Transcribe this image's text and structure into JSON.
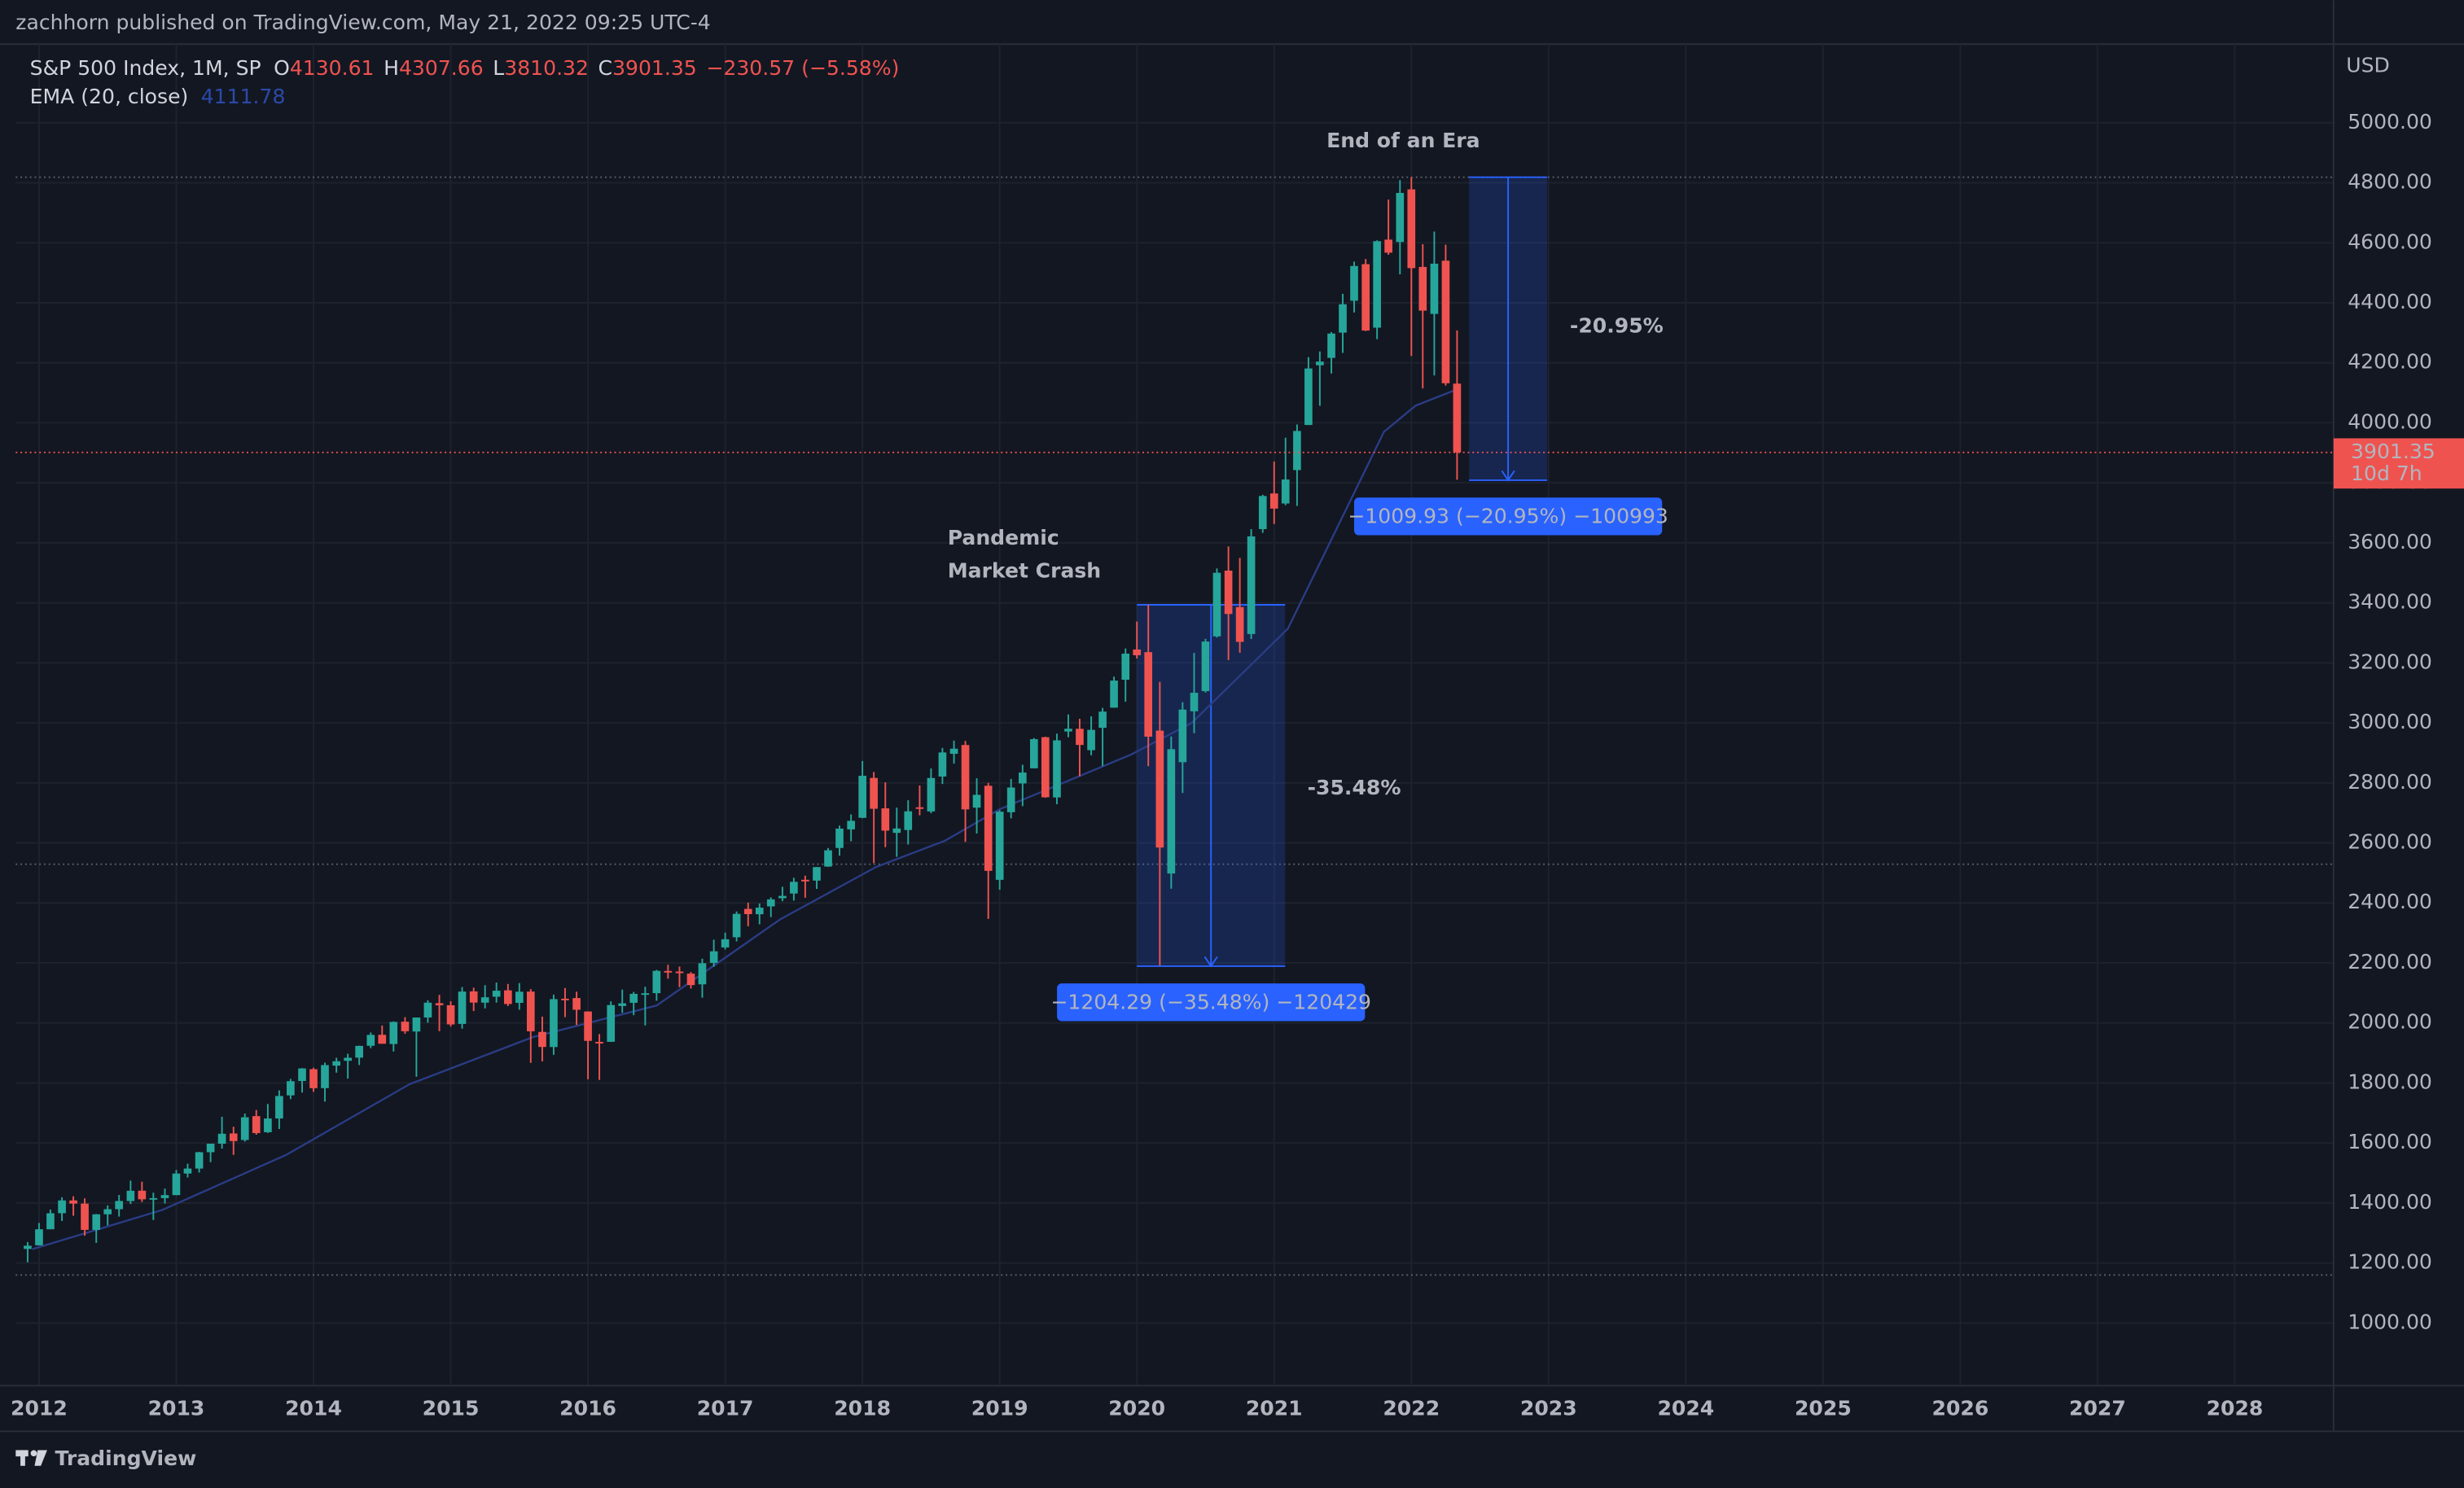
{
  "header": {
    "text": "zachhorn published on TradingView.com, May 21, 2022 09:25 UTC-4"
  },
  "legend": {
    "symbol": "S&P 500 Index, 1M, SP",
    "o": "O",
    "h": "H",
    "l": "L",
    "c": "C",
    "change": "−230.57 (−5.58%)",
    "ema_name": "EMA (20, close)"
  },
  "footer": {
    "brand": "TradingView"
  },
  "chart_data": {
    "type": "candlestick",
    "currency": "USD",
    "countdown": "10d 7h",
    "x": [
      2011.917,
      2012,
      2012.083,
      2012.167,
      2012.25,
      2012.333,
      2012.417,
      2012.5,
      2012.583,
      2012.667,
      2012.75,
      2012.833,
      2012.917,
      2013,
      2013.083,
      2013.167,
      2013.25,
      2013.333,
      2013.417,
      2013.5,
      2013.583,
      2013.667,
      2013.75,
      2013.833,
      2013.917,
      2014,
      2014.083,
      2014.167,
      2014.25,
      2014.333,
      2014.417,
      2014.5,
      2014.583,
      2014.667,
      2014.75,
      2014.833,
      2014.917,
      2015,
      2015.083,
      2015.167,
      2015.25,
      2015.333,
      2015.417,
      2015.5,
      2015.583,
      2015.667,
      2015.75,
      2015.833,
      2015.917,
      2016,
      2016.083,
      2016.167,
      2016.25,
      2016.333,
      2016.417,
      2016.5,
      2016.583,
      2016.667,
      2016.75,
      2016.833,
      2016.917,
      2017,
      2017.083,
      2017.167,
      2017.25,
      2017.333,
      2017.417,
      2017.5,
      2017.583,
      2017.667,
      2017.75,
      2017.833,
      2017.917,
      2018,
      2018.083,
      2018.167,
      2018.25,
      2018.333,
      2018.417,
      2018.5,
      2018.583,
      2018.667,
      2018.75,
      2018.833,
      2018.917,
      2019,
      2019.083,
      2019.167,
      2019.25,
      2019.333,
      2019.417,
      2019.5,
      2019.583,
      2019.667,
      2019.75,
      2019.833,
      2019.917,
      2020,
      2020.083,
      2020.167,
      2020.25,
      2020.333,
      2020.417,
      2020.5,
      2020.583,
      2020.667,
      2020.75,
      2020.833,
      2020.917,
      2021,
      2021.083,
      2021.167,
      2021.25,
      2021.333,
      2021.417,
      2021.5,
      2021.583,
      2021.667,
      2021.75,
      2021.833,
      2021.917,
      2022,
      2022.083,
      2022.167,
      2022.25,
      2022.333
    ],
    "open": [
      1246.9,
      1258.9,
      1312.4,
      1365.9,
      1408.5,
      1397.9,
      1310.3,
      1362.3,
      1379.3,
      1406.5,
      1440.9,
      1412.2,
      1416.2,
      1426.2,
      1498.1,
      1514.7,
      1569.2,
      1597.6,
      1631.7,
      1609.8,
      1689.4,
      1635.9,
      1681.6,
      1758.7,
      1806.6,
      1845.9,
      1782.7,
      1857.7,
      1873.9,
      1884.4,
      1923.9,
      1960.5,
      1929.8,
      2004.1,
      1971.4,
      2018.2,
      2065.8,
      2058.9,
      1996.7,
      2105.2,
      2067.6,
      2087.4,
      2108.6,
      2067.0,
      2104.5,
      1970.1,
      1919.7,
      2080.8,
      2082.9,
      2038.2,
      1936.9,
      1937.1,
      2056.6,
      2067.2,
      2093.9,
      2099.3,
      2173.2,
      2171.3,
      2164.3,
      2128.7,
      2200.2,
      2251.6,
      2285.6,
      2380.1,
      2362.3,
      2388.5,
      2415.7,
      2431.4,
      2477.1,
      2474.4,
      2521.2,
      2583.2,
      2645.1,
      2683.7,
      2816.5,
      2715.2,
      2633.5,
      2643.0,
      2718.7,
      2704.9,
      2821.2,
      2896.96,
      2926.3,
      2717.6,
      2790.5,
      2476.96,
      2702.3,
      2798.2,
      2848.6,
      2952.3,
      2751.5,
      2971.4,
      2980.3,
      2909.0,
      2983.7,
      3050.7,
      3143.9,
      3244.7,
      3235.7,
      2974.3,
      2498.1,
      2869.1,
      3038.8,
      3105.9,
      3288.3,
      3507.4,
      3385.9,
      3296.2,
      3645.9,
      3764.6,
      3731.2,
      3842.5,
      3992.8,
      4191.98,
      4216.5,
      4300.7,
      4406.9,
      4528.8,
      4317.2,
      4610.6,
      4602.8,
      4778.1,
      4519.6,
      4363.1,
      4540.3,
      4130.61
    ],
    "high": [
      1269.4,
      1333.5,
      1378.0,
      1419.2,
      1422.4,
      1415.3,
      1363.5,
      1392.0,
      1426.7,
      1474.5,
      1470.9,
      1434.3,
      1448.0,
      1509.9,
      1530.9,
      1570.3,
      1597.6,
      1687.2,
      1654.2,
      1698.0,
      1709.7,
      1729.9,
      1775.2,
      1813.6,
      1849.4,
      1850.8,
      1867.9,
      1883.9,
      1897.3,
      1924.0,
      1968.2,
      1991.4,
      2005.0,
      2019.3,
      2018.2,
      2075.8,
      2093.6,
      2072.4,
      2119.6,
      2117.5,
      2125.9,
      2134.7,
      2129.9,
      2132.8,
      2112.7,
      2021.0,
      2094.3,
      2116.5,
      2104.3,
      2038.2,
      1962.9,
      2072.2,
      2111.1,
      2103.5,
      2120.6,
      2177.1,
      2193.8,
      2187.9,
      2169.6,
      2214.1,
      2277.5,
      2300.9,
      2371.5,
      2400.98,
      2398.2,
      2418.7,
      2453.8,
      2484.0,
      2490.9,
      2519.4,
      2582.98,
      2657.7,
      2694.97,
      2872.9,
      2835.96,
      2801.9,
      2717.5,
      2742.2,
      2791.5,
      2848.0,
      2916.5,
      2940.9,
      2939.9,
      2815.2,
      2800.2,
      2708.95,
      2813.5,
      2860.3,
      2949.5,
      2954.1,
      2964.2,
      3027.98,
      3013.6,
      3021.99,
      3050.1,
      3154.3,
      3247.9,
      3337.8,
      3393.5,
      3136.7,
      2954.9,
      3068.7,
      3233.1,
      3279.99,
      3514.8,
      3588.1,
      3549.9,
      3645.99,
      3760.2,
      3870.9,
      3950.4,
      3994.4,
      4218.8,
      4238.0,
      4302.4,
      4429.97,
      4537.4,
      4545.9,
      4608.1,
      4743.8,
      4808.9,
      4818.62,
      4595.3,
      4637.3,
      4593.5,
      4307.66
    ],
    "low": [
      1202.4,
      1258.9,
      1312.4,
      1340.0,
      1357.4,
      1291.0,
      1267.0,
      1325.4,
      1354.7,
      1396.6,
      1403.3,
      1343.4,
      1398.1,
      1426.2,
      1485.0,
      1501.5,
      1536.0,
      1581.3,
      1560.3,
      1604.6,
      1627.5,
      1633.4,
      1646.5,
      1746.2,
      1767.9,
      1770.5,
      1737.9,
      1834.4,
      1814.4,
      1859.8,
      1915.9,
      1930.7,
      1904.8,
      1964.0,
      1820.7,
      2001.0,
      1972.6,
      1988.1,
      1980.9,
      2039.7,
      2048.4,
      2067.9,
      2056.3,
      2044.0,
      1867.0,
      1871.9,
      1893.7,
      2019.4,
      1993.3,
      1812.3,
      1810.1,
      1937.1,
      2033.8,
      2025.9,
      1991.7,
      2074.0,
      2147.6,
      2119.1,
      2114.7,
      2084.0,
      2187.4,
      2245.1,
      2271.7,
      2322.3,
      2328.9,
      2352.7,
      2405.7,
      2407.7,
      2417.4,
      2446.6,
      2520.4,
      2557.5,
      2605.5,
      2682.4,
      2532.7,
      2585.9,
      2553.8,
      2594.6,
      2691.99,
      2698.95,
      2796.3,
      2864.1,
      2603.5,
      2631.1,
      2346.6,
      2443.96,
      2681.8,
      2722.3,
      2848.6,
      2750.5,
      2728.8,
      2952.2,
      2822.1,
      2891.9,
      2855.9,
      3050.7,
      3070.3,
      3214.6,
      2855.8,
      2191.9,
      2447.5,
      2766.6,
      2965.7,
      3101.2,
      3284.5,
      3209.5,
      3233.9,
      3279.7,
      3633.4,
      3662.7,
      3725.6,
      3723.3,
      3992.8,
      4056.9,
      4164.4,
      4233.1,
      4367.7,
      4305.9,
      4278.9,
      4560.0,
      4495.1,
      4222.6,
      4114.7,
      4157.9,
      4124.3,
      3810.32
    ],
    "close": [
      1257.6,
      1312.4,
      1365.7,
      1408.5,
      1397.9,
      1310.3,
      1362.2,
      1379.3,
      1406.6,
      1440.7,
      1412.2,
      1416.2,
      1426.2,
      1498.1,
      1514.7,
      1569.2,
      1597.6,
      1630.7,
      1606.3,
      1685.7,
      1633.0,
      1681.6,
      1756.5,
      1805.8,
      1848.4,
      1782.6,
      1859.5,
      1872.3,
      1883.9,
      1923.6,
      1960.2,
      1930.7,
      2003.4,
      1972.3,
      2018.1,
      2067.6,
      2058.9,
      1995.0,
      2104.5,
      2067.9,
      2085.5,
      2107.4,
      2063.1,
      2104.0,
      1972.2,
      1920.0,
      2079.4,
      2080.4,
      2043.9,
      1940.2,
      1932.2,
      2059.7,
      2065.3,
      2096.9,
      2098.9,
      2173.6,
      2170.9,
      2168.3,
      2126.2,
      2199.0,
      2238.8,
      2278.9,
      2363.6,
      2362.7,
      2384.2,
      2411.8,
      2423.4,
      2470.3,
      2471.7,
      2519.4,
      2575.3,
      2647.6,
      2673.6,
      2823.8,
      2713.8,
      2640.9,
      2648.1,
      2705.3,
      2718.4,
      2816.3,
      2901.5,
      2914.0,
      2711.7,
      2760.2,
      2506.9,
      2704.1,
      2784.5,
      2834.4,
      2945.8,
      2752.1,
      2941.8,
      2980.4,
      2926.5,
      2976.7,
      3037.6,
      3141.0,
      3230.8,
      3225.5,
      2954.2,
      2584.6,
      2912.4,
      3044.3,
      3100.3,
      3271.1,
      3500.3,
      3363.0,
      3270.0,
      3621.6,
      3756.1,
      3714.2,
      3811.2,
      3972.9,
      4181.2,
      4204.1,
      4297.5,
      4395.3,
      4522.7,
      4307.5,
      4605.4,
      4567.0,
      4766.2,
      4515.6,
      4373.9,
      4530.4,
      4131.9,
      3901.35
    ],
    "ema": {
      "x": [
        2011.95,
        2012.9,
        2013.8,
        2014.7,
        2015.6,
        2016.5,
        2017.4,
        2018.1,
        2018.6,
        2019.0,
        2019.96,
        2020.4,
        2021.1,
        2021.8,
        2022.03,
        2022.333
      ],
      "values": [
        1246,
        1377,
        1560,
        1796,
        1953,
        2058,
        2345,
        2520,
        2607,
        2712,
        2895,
        3000,
        3314,
        3970,
        4057,
        4111.78
      ]
    },
    "colors": {
      "up": "#26a69a",
      "down": "#ef5350",
      "ema": "#2a3d86",
      "measure": "#2962ff",
      "annotation": "#f5b731"
    },
    "xlim": [
      2011.83,
      2028.72
    ],
    "xticks": [
      2012,
      2013,
      2014,
      2015,
      2016,
      2017,
      2018,
      2019,
      2020,
      2021,
      2022,
      2023,
      2024,
      2025,
      2026,
      2027,
      2028
    ],
    "ylim": [
      791,
      5262
    ],
    "yticks": [
      {
        "value": 1000,
        "label": "1000.00"
      },
      {
        "value": 1200,
        "label": "1200.00"
      },
      {
        "value": 1400,
        "label": "1400.00"
      },
      {
        "value": 1600,
        "label": "1600.00"
      },
      {
        "value": 1800,
        "label": "1800.00"
      },
      {
        "value": 2000,
        "label": "2000.00"
      },
      {
        "value": 2200,
        "label": "2200.00"
      },
      {
        "value": 2400,
        "label": "2400.00"
      },
      {
        "value": 2600,
        "label": "2600.00"
      },
      {
        "value": 2800,
        "label": "2800.00"
      },
      {
        "value": 3000,
        "label": "3000.00"
      },
      {
        "value": 3200,
        "label": "3200.00"
      },
      {
        "value": 3400,
        "label": "3400.00"
      },
      {
        "value": 3600,
        "label": "3600.00"
      },
      {
        "value": 3800,
        "label": "3800.00"
      },
      {
        "value": 4000,
        "label": "4000.00"
      },
      {
        "value": 4200,
        "label": "4200.00"
      },
      {
        "value": 4400,
        "label": "4400.00"
      },
      {
        "value": 4600,
        "label": "4600.00"
      },
      {
        "value": 4800,
        "label": "4800.00"
      },
      {
        "value": 5000,
        "label": "5000.00"
      }
    ],
    "grid": true,
    "hlines": [
      4818.62,
      2529,
      1160
    ],
    "annotations": [
      "End of an Era",
      "Pandemic",
      "Market Crash"
    ],
    "measures": [
      {
        "x": [
          2020.0,
          2021.08
        ],
        "from": 3393.5,
        "to": 2189.2,
        "label": "−1204.29 (−35.48%) −120429",
        "big": "-35.48%"
      },
      {
        "x": [
          2022.42,
          2022.99
        ],
        "from": 4818.62,
        "to": 3808.69,
        "label": "−1009.93 (−20.95%) −100993",
        "big": "-20.95%"
      }
    ]
  }
}
